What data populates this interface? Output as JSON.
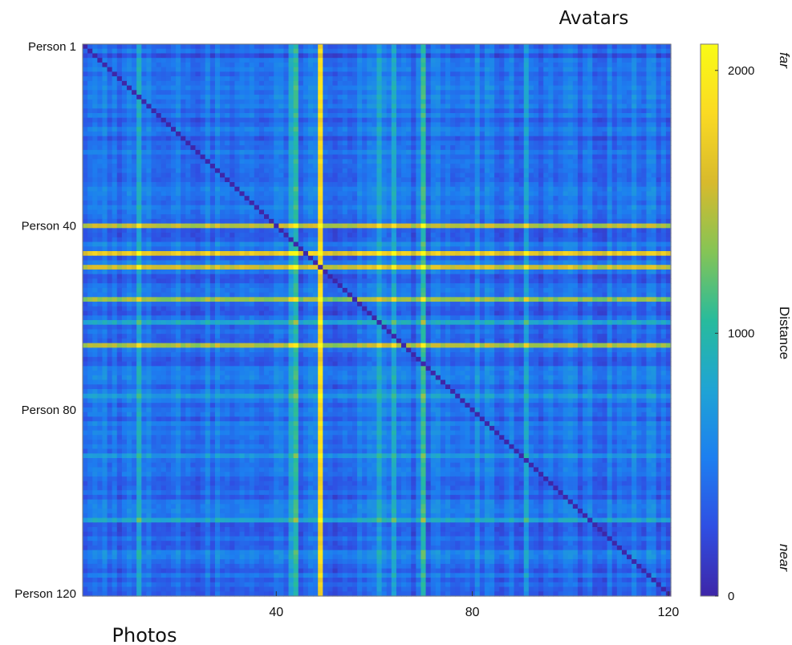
{
  "chart_data": {
    "type": "heatmap",
    "title": "Avatars",
    "xlabel": "Photos",
    "ylabel": "",
    "n": 120,
    "x_ticks": [
      {
        "value": 40,
        "label": "40"
      },
      {
        "value": 80,
        "label": "80"
      },
      {
        "value": 120,
        "label": "120"
      }
    ],
    "y_ticks": [
      {
        "value": 1,
        "label": "Person 1"
      },
      {
        "value": 40,
        "label": "Person 40"
      },
      {
        "value": 80,
        "label": "Person 80"
      },
      {
        "value": 120,
        "label": "Person 120"
      }
    ],
    "colorbar": {
      "label": "Distance",
      "range": [
        0,
        2100
      ],
      "ticks": [
        {
          "value": 0,
          "label": "0"
        },
        {
          "value": 1000,
          "label": "1000"
        },
        {
          "value": 2000,
          "label": "2000"
        }
      ],
      "high_label": "far",
      "low_label": "near",
      "colormap": [
        "#3e26a8",
        "#2f4fe3",
        "#1d7ff0",
        "#1fa4d4",
        "#28bb9c",
        "#86c455",
        "#d8ba2c",
        "#fada23",
        "#f9fb15"
      ]
    },
    "diagonal_value": 0,
    "baseline_value": 430,
    "row_profile": [
      {
        "index": 3,
        "value": 300
      },
      {
        "index": 11,
        "value": 560
      },
      {
        "index": 28,
        "value": 450
      },
      {
        "index": 40,
        "value": 1400
      },
      {
        "index": 46,
        "value": 1700
      },
      {
        "index": 49,
        "value": 1450
      },
      {
        "index": 56,
        "value": 1250
      },
      {
        "index": 61,
        "value": 950
      },
      {
        "index": 66,
        "value": 1550
      },
      {
        "index": 77,
        "value": 800
      },
      {
        "index": 90,
        "value": 720
      },
      {
        "index": 104,
        "value": 760
      },
      {
        "index": 111,
        "value": 650
      }
    ],
    "col_profile": [
      {
        "index": 5,
        "value": 500
      },
      {
        "index": 12,
        "value": 800
      },
      {
        "index": 28,
        "value": 600
      },
      {
        "index": 43,
        "value": 900
      },
      {
        "index": 44,
        "value": 1100
      },
      {
        "index": 49,
        "value": 1700
      },
      {
        "index": 61,
        "value": 700
      },
      {
        "index": 64,
        "value": 900
      },
      {
        "index": 70,
        "value": 1000
      },
      {
        "index": 81,
        "value": 650
      },
      {
        "index": 91,
        "value": 750
      },
      {
        "index": 113,
        "value": 500
      }
    ]
  }
}
